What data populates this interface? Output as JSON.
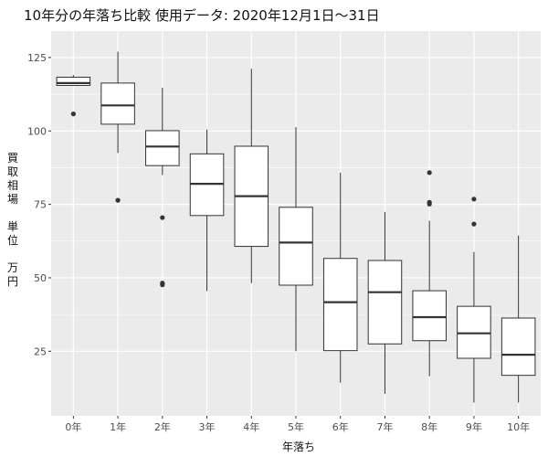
{
  "chart_data": {
    "type": "boxplot",
    "title": "10年分の年落ち比較 使用データ: 2020年12月1日〜31日",
    "xlabel": "年落ち",
    "ylabel_lines": [
      "買",
      "取",
      "相",
      "場",
      "",
      "単",
      "位",
      "",
      "万",
      "円"
    ],
    "ylim": [
      3,
      134
    ],
    "yticks": [
      25,
      50,
      75,
      100,
      125
    ],
    "grid": true,
    "categories": [
      "0年",
      "1年",
      "2年",
      "3年",
      "4年",
      "5年",
      "6年",
      "7年",
      "8年",
      "9年",
      "10年"
    ],
    "boxes": [
      {
        "min": 115.5,
        "q1": 115.5,
        "median": 116.3,
        "q3": 118.3,
        "max": 119,
        "outliers": [
          105.8
        ]
      },
      {
        "min": 92.5,
        "q1": 102.3,
        "median": 108.7,
        "q3": 116.3,
        "max": 127,
        "outliers": [
          76.4
        ]
      },
      {
        "min": 85,
        "q1": 88.2,
        "median": 94.7,
        "q3": 100.1,
        "max": 114.7,
        "outliers": [
          70.5,
          48.2,
          47.6
        ]
      },
      {
        "min": 45.5,
        "q1": 71.2,
        "median": 82,
        "q3": 92.2,
        "max": 100.5,
        "outliers": []
      },
      {
        "min": 48.2,
        "q1": 60.7,
        "median": 77.8,
        "q3": 94.8,
        "max": 121.2,
        "outliers": []
      },
      {
        "min": 25,
        "q1": 47.5,
        "median": 62,
        "q3": 74,
        "max": 101.3,
        "outliers": []
      },
      {
        "min": 14.3,
        "q1": 25.2,
        "median": 41.7,
        "q3": 56.6,
        "max": 85.8,
        "outliers": []
      },
      {
        "min": 10.5,
        "q1": 27.5,
        "median": 45.1,
        "q3": 55.9,
        "max": 72.4,
        "outliers": []
      },
      {
        "min": 16.5,
        "q1": 28.6,
        "median": 36.6,
        "q3": 45.6,
        "max": 69.4,
        "outliers": [
          85.8,
          75.7,
          75.1
        ]
      },
      {
        "min": 7.5,
        "q1": 22.6,
        "median": 31.1,
        "q3": 40.3,
        "max": 58.8,
        "outliers": [
          76.8,
          68.3
        ]
      },
      {
        "min": 7.5,
        "q1": 16.8,
        "median": 23.8,
        "q3": 36.3,
        "max": 64.4,
        "outliers": []
      }
    ],
    "colors": {
      "panel": "#ebebeb",
      "grid": "#ffffff",
      "box_fill": "#ffffff",
      "line": "#333333",
      "text": "#4d4d4d"
    }
  }
}
